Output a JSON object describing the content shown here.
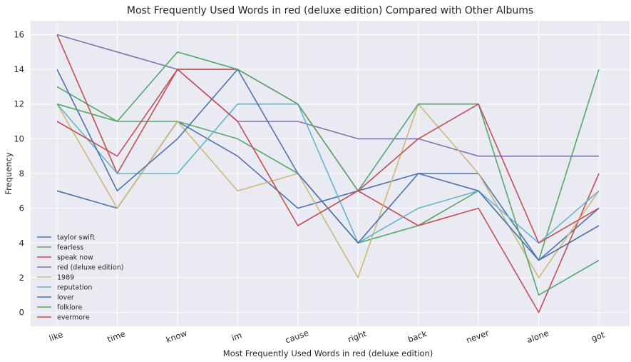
{
  "chart_data": {
    "type": "line",
    "title": "Most Frequently Used Words in red (deluxe edition) Compared with Other Albums",
    "xlabel": "Most Frequently Used Words in red (deluxe edition)",
    "ylabel": "Frequency",
    "categories": [
      "like",
      "time",
      "know",
      "im",
      "cause",
      "right",
      "back",
      "never",
      "alone",
      "got"
    ],
    "ylim": [
      -0.8,
      16.8
    ],
    "yticks": [
      0,
      2,
      4,
      6,
      8,
      10,
      12,
      14,
      16
    ],
    "grid": true,
    "legend_position": "lower-left",
    "series": [
      {
        "name": "taylor swift",
        "color": "#4C72B0",
        "values": [
          7,
          6,
          11,
          9,
          6,
          7,
          8,
          8,
          3,
          6
        ]
      },
      {
        "name": "fearless",
        "color": "#55A868",
        "values": [
          13,
          11,
          11,
          10,
          8,
          4,
          5,
          7,
          3,
          14
        ]
      },
      {
        "name": "speak now",
        "color": "#C44E52",
        "values": [
          16,
          8,
          14,
          14,
          12,
          7,
          5,
          6,
          0,
          8
        ]
      },
      {
        "name": "red (deluxe edition)",
        "color": "#8172B2",
        "values": [
          16,
          15,
          14,
          11,
          11,
          10,
          10,
          9,
          9,
          9
        ]
      },
      {
        "name": "1989",
        "color": "#CCB974",
        "values": [
          12,
          6,
          11,
          7,
          8,
          2,
          12,
          8,
          2,
          7
        ]
      },
      {
        "name": "reputation",
        "color": "#64B5CD",
        "values": [
          12,
          8,
          8,
          12,
          12,
          4,
          6,
          7,
          4,
          7
        ]
      },
      {
        "name": "lover",
        "color": "#4C72B0",
        "values": [
          14,
          7,
          10,
          14,
          8,
          4,
          8,
          7,
          3,
          5
        ]
      },
      {
        "name": "folklore",
        "color": "#55A868",
        "values": [
          12,
          11,
          15,
          14,
          12,
          7,
          12,
          12,
          1,
          3
        ]
      },
      {
        "name": "evermore",
        "color": "#C44E52",
        "values": [
          11,
          9,
          14,
          11,
          5,
          7,
          10,
          12,
          4,
          6
        ]
      }
    ]
  }
}
